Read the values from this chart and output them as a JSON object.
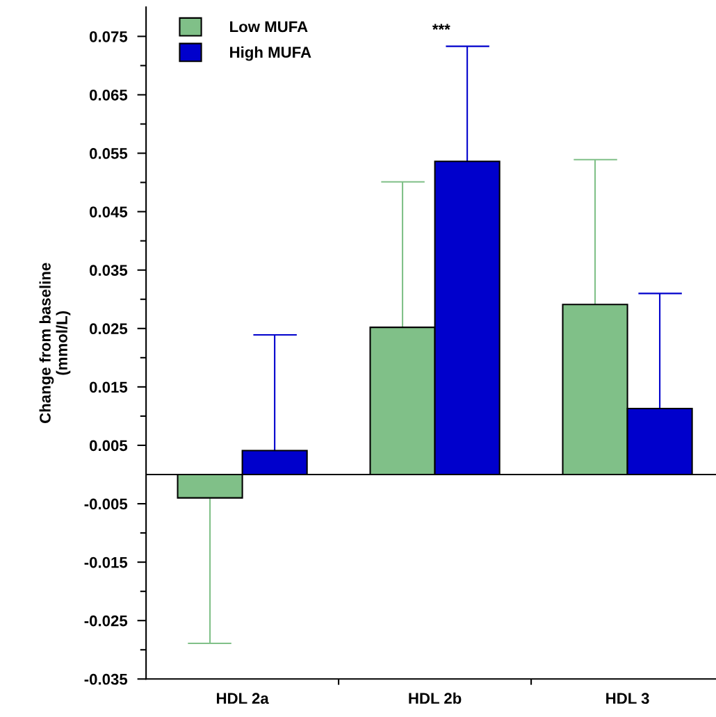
{
  "chart_data": {
    "type": "bar",
    "ylabel": "Change from baseline\n(mmol/L)",
    "categories": [
      "HDL 2a",
      "HDL 2b",
      "HDL 3"
    ],
    "series": [
      {
        "name": "Low MUFA",
        "color": "#80c088",
        "values": [
          -0.004,
          0.0252,
          0.0291
        ],
        "errors": [
          [
            -0.0289,
            -0.004
          ],
          [
            0.0252,
            0.0501
          ],
          [
            0.0291,
            0.0539
          ]
        ]
      },
      {
        "name": "High MUFA",
        "color": "#0000cc",
        "values": [
          0.0041,
          0.0536,
          0.0113
        ],
        "errors": [
          [
            0.0041,
            0.0239
          ],
          [
            0.0536,
            0.0733
          ],
          [
            0.0113,
            0.031
          ]
        ]
      }
    ],
    "ylim": [
      -0.035,
      0.08
    ],
    "yticks": [
      -0.035,
      {
        "value": -0.03,
        "label": null
      },
      -0.025,
      {
        "value": -0.02,
        "label": null
      },
      -0.015,
      {
        "value": -0.01,
        "label": null
      },
      -0.005,
      0.005,
      {
        "value": 0.01,
        "label": null
      },
      0.015,
      {
        "value": 0.02,
        "label": null
      },
      0.025,
      {
        "value": 0.03,
        "label": null
      },
      0.035,
      {
        "value": 0.04,
        "label": null
      },
      0.045,
      {
        "value": 0.05,
        "label": null
      },
      0.055,
      {
        "value": 0.06,
        "label": null
      },
      0.065,
      {
        "value": 0.07,
        "label": null
      },
      0.075
    ],
    "ref_lines": [
      {
        "axis": "y",
        "value": 0,
        "color": "#000000"
      }
    ],
    "annotations": [
      "***"
    ],
    "legend": "top left",
    "grid": false
  }
}
